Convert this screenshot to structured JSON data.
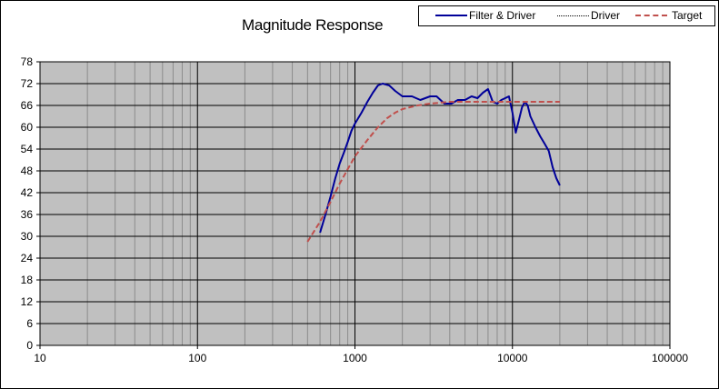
{
  "chart_data": {
    "type": "line",
    "title": "Magnitude Response",
    "xlabel": "",
    "ylabel": "",
    "x_scale": "log",
    "xlim": [
      10,
      100000
    ],
    "ylim": [
      0,
      78
    ],
    "x_ticks": [
      "10",
      "100",
      "1000",
      "10000",
      "100000"
    ],
    "y_ticks": [
      "0",
      "6",
      "12",
      "18",
      "24",
      "30",
      "36",
      "42",
      "48",
      "54",
      "60",
      "66",
      "72",
      "78"
    ],
    "grid": true,
    "legend_position": "top-right",
    "plot_background": "#c0c0c0",
    "series": [
      {
        "name": "Filter & Driver",
        "color": "#000099",
        "style": "solid",
        "points": [
          [
            600,
            31
          ],
          [
            650,
            36
          ],
          [
            700,
            41
          ],
          [
            750,
            46
          ],
          [
            800,
            50
          ],
          [
            850,
            53
          ],
          [
            900,
            56
          ],
          [
            950,
            59
          ],
          [
            1000,
            61
          ],
          [
            1100,
            64
          ],
          [
            1200,
            67
          ],
          [
            1300,
            69.5
          ],
          [
            1400,
            71.5
          ],
          [
            1500,
            72
          ],
          [
            1650,
            71.5
          ],
          [
            1800,
            70
          ],
          [
            2000,
            68.5
          ],
          [
            2300,
            68.5
          ],
          [
            2600,
            67.5
          ],
          [
            3000,
            68.5
          ],
          [
            3300,
            68.5
          ],
          [
            3700,
            66.5
          ],
          [
            4100,
            66.5
          ],
          [
            4500,
            67.5
          ],
          [
            5000,
            67.5
          ],
          [
            5500,
            68.5
          ],
          [
            6000,
            68
          ],
          [
            6500,
            69.5
          ],
          [
            7000,
            70.5
          ],
          [
            7500,
            67
          ],
          [
            8000,
            66.5
          ],
          [
            8500,
            67.5
          ],
          [
            9000,
            68
          ],
          [
            9500,
            68.5
          ],
          [
            10000,
            64
          ],
          [
            10500,
            58.5
          ],
          [
            11000,
            62
          ],
          [
            11500,
            65.5
          ],
          [
            12000,
            67
          ],
          [
            12500,
            66
          ],
          [
            13000,
            63
          ],
          [
            14000,
            60
          ],
          [
            15000,
            57.5
          ],
          [
            16000,
            55.5
          ],
          [
            17000,
            53.5
          ],
          [
            18000,
            49
          ],
          [
            19000,
            46
          ],
          [
            20000,
            44
          ]
        ]
      },
      {
        "name": "Driver",
        "color": "#000000",
        "style": "dotted",
        "points": []
      },
      {
        "name": "Target",
        "color": "#c0504d",
        "style": "dashed",
        "points": [
          [
            500,
            28.5
          ],
          [
            600,
            34
          ],
          [
            700,
            39.5
          ],
          [
            800,
            44.5
          ],
          [
            900,
            48.5
          ],
          [
            1000,
            52
          ],
          [
            1200,
            56.5
          ],
          [
            1400,
            60
          ],
          [
            1600,
            62.5
          ],
          [
            1800,
            64
          ],
          [
            2000,
            65
          ],
          [
            2500,
            66
          ],
          [
            3000,
            66.5
          ],
          [
            4000,
            67
          ],
          [
            5000,
            67
          ],
          [
            7000,
            67
          ],
          [
            10000,
            67
          ],
          [
            15000,
            67
          ],
          [
            20000,
            67
          ]
        ]
      }
    ]
  }
}
